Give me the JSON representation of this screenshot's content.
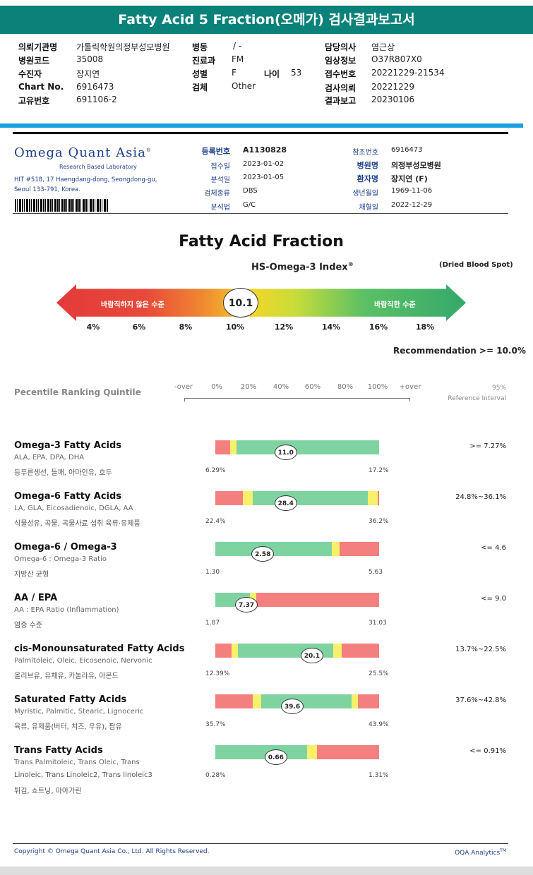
{
  "report_title": "Fatty Acid 5 Fraction(오메가) 검사결과보고서",
  "header": {
    "left": [
      {
        "label": "의뢰기관명",
        "value": "가톨릭학원의정부성모병원"
      },
      {
        "label": "병원코드",
        "value": "35008"
      },
      {
        "label": "수진자",
        "value": "장지연"
      },
      {
        "label": "Chart No.",
        "value": "6916473"
      },
      {
        "label": "고유번호",
        "value": "691106-2"
      }
    ],
    "middle": [
      {
        "label": "병동",
        "value": "/ -"
      },
      {
        "label": "진료과",
        "value": "FM"
      },
      {
        "label": "성별",
        "value": "F"
      },
      {
        "label": "검체",
        "value": "Other"
      }
    ],
    "age": {
      "label": "나이",
      "value": "53"
    },
    "right": [
      {
        "label": "담당의사",
        "value": "염근상"
      },
      {
        "label": "임상정보",
        "value": "O37R807X0"
      },
      {
        "label": "접수번호",
        "value": "20221229-21534"
      },
      {
        "label": "검사의뢰",
        "value": "20221229"
      },
      {
        "label": "결과보고",
        "value": "20230106"
      }
    ]
  },
  "lab": {
    "name_big": "Omega Quant Asia",
    "tm": "®",
    "tagline": "Research Based Laboratory",
    "address1": "HIT #518, 17 Haengdang-dong, Seongdong-gu,",
    "address2": "Seoul 133-791, Korea."
  },
  "specimen": {
    "col1": [
      {
        "label": "등록번호",
        "value": "A1130828",
        "bold": true
      },
      {
        "label": "접수일",
        "value": "2023-01-02"
      },
      {
        "label": "분석일",
        "value": "2023-01-05"
      },
      {
        "label": "검체종류",
        "value": "DBS"
      },
      {
        "label": "분석법",
        "value": "G/C"
      }
    ],
    "col2": [
      {
        "label": "참조번호",
        "value": "6916473"
      },
      {
        "label": "병원명",
        "value": "의정부성모병원",
        "bold": true
      },
      {
        "label": "환자명",
        "value": "장지연 (F)",
        "bold": true
      },
      {
        "label": "생년월일",
        "value": "1969-11-06"
      },
      {
        "label": "채혈일",
        "value": "2022-12-29"
      }
    ]
  },
  "main_title": "Fatty Acid Fraction",
  "hs_omega": {
    "title": "HS-Omega-3 Index",
    "title_sup": "®",
    "sample": "(Dried Blood Spot)",
    "left_label": "바람직하지 않은 수준",
    "right_label": "바람직한 수준",
    "value": "10.1",
    "ticks": [
      "4%",
      "6%",
      "8%",
      "10%",
      "12%",
      "14%",
      "16%",
      "18%"
    ],
    "recommendation": "Recommendation  >= 10.0%"
  },
  "percentile": {
    "title": "Pecentile Ranking Quintile",
    "labels": [
      "-over",
      "0%",
      "20%",
      "40%",
      "60%",
      "80%",
      "100%",
      "+over"
    ],
    "ref_title_1": "95%",
    "ref_title_2": "Reference Interval"
  },
  "rows": [
    {
      "title": "Omega-3 Fatty Acids",
      "sub": "ALA, EPA, DPA, DHA",
      "sub2": "등푸른생선, 들깨, 아마인유, 호두",
      "sub3": "",
      "min": "6.29%",
      "max": "17.2%",
      "value": "11.0",
      "value_pos": 0.43,
      "ref": ">= 7.27%",
      "segments": [
        {
          "from": 0,
          "to": 0.09,
          "c": "#f47f7f"
        },
        {
          "from": 0.09,
          "to": 0.13,
          "c": "#f6f06a"
        },
        {
          "from": 0.13,
          "to": 1,
          "c": "#7fd3a0"
        }
      ]
    },
    {
      "title": "Omega-6 Fatty Acids",
      "sub": "LA, GLA, Eicosadienoic, DGLA, AA",
      "sub2": "식물성유, 곡물, 곡물사료 섭취 육류·유제품",
      "sub3": "",
      "min": "22.4%",
      "max": "36.2%",
      "value": "28.4",
      "value_pos": 0.43,
      "ref": "24.8%~36.1%",
      "segments": [
        {
          "from": 0,
          "to": 0.17,
          "c": "#f47f7f"
        },
        {
          "from": 0.17,
          "to": 0.23,
          "c": "#f6f06a"
        },
        {
          "from": 0.23,
          "to": 0.93,
          "c": "#7fd3a0"
        },
        {
          "from": 0.93,
          "to": 0.99,
          "c": "#f6f06a"
        },
        {
          "from": 0.99,
          "to": 1,
          "c": "#f47f7f"
        }
      ]
    },
    {
      "title": "Omega-6 / Omega-3",
      "sub": "Omega-6 : Omega-3 Ratio",
      "sub2": "지방산 균형",
      "sub3": "",
      "min": "1.30",
      "max": "5.63",
      "value": "2.58",
      "value_pos": 0.29,
      "ref": "<= 4.6",
      "segments": [
        {
          "from": 0,
          "to": 0.71,
          "c": "#7fd3a0"
        },
        {
          "from": 0.71,
          "to": 0.76,
          "c": "#f6f06a"
        },
        {
          "from": 0.76,
          "to": 1,
          "c": "#f47f7f"
        }
      ]
    },
    {
      "title": "AA / EPA",
      "sub": "AA : EPA Ratio (Inflammation)",
      "sub2": "염증 수준",
      "sub3": "",
      "min": "1.87",
      "max": "31.03",
      "value": "7.37",
      "value_pos": 0.19,
      "ref": "<= 9.0",
      "segments": [
        {
          "from": 0,
          "to": 0.21,
          "c": "#7fd3a0"
        },
        {
          "from": 0.21,
          "to": 0.25,
          "c": "#f6f06a"
        },
        {
          "from": 0.25,
          "to": 1,
          "c": "#f47f7f"
        }
      ]
    },
    {
      "title": "cis-Monounsaturated Fatty Acids",
      "sub": "Palmitoleic, Oleic, Eicosenoic, Nervonic",
      "sub2": "올리브유, 유채유, 카놀라유, 아몬드",
      "sub3": "",
      "min": "12.39%",
      "max": "25.5%",
      "value": "20.1",
      "value_pos": 0.59,
      "ref": "13.7%~22.5%",
      "segments": [
        {
          "from": 0,
          "to": 0.1,
          "c": "#f47f7f"
        },
        {
          "from": 0.1,
          "to": 0.14,
          "c": "#f6f06a"
        },
        {
          "from": 0.14,
          "to": 0.72,
          "c": "#7fd3a0"
        },
        {
          "from": 0.72,
          "to": 0.77,
          "c": "#f6f06a"
        },
        {
          "from": 0.77,
          "to": 1,
          "c": "#f47f7f"
        }
      ]
    },
    {
      "title": "Saturated Fatty Acids",
      "sub": "Myristic, Palmitic, Stearic, Lignoceric",
      "sub2": "육류, 유제품(버터, 치즈, 우유), 팜유",
      "sub3": "",
      "min": "35.7%",
      "max": "43.9%",
      "value": "39.6",
      "value_pos": 0.47,
      "ref": "37.6%~42.8%",
      "segments": [
        {
          "from": 0,
          "to": 0.23,
          "c": "#f47f7f"
        },
        {
          "from": 0.23,
          "to": 0.28,
          "c": "#f6f06a"
        },
        {
          "from": 0.28,
          "to": 0.83,
          "c": "#7fd3a0"
        },
        {
          "from": 0.83,
          "to": 0.87,
          "c": "#f6f06a"
        },
        {
          "from": 0.87,
          "to": 1,
          "c": "#f47f7f"
        }
      ]
    },
    {
      "title": "Trans Fatty Acids",
      "sub": "Trans Palmitoleic, Trans Oleic, Trans",
      "sub2": "Linoleic, Trans Linoleic2, Trans linoleic3",
      "sub3": "튀김, 쇼트닝, 마아가린",
      "min": "0.28%",
      "max": "1.31%",
      "value": "0.66",
      "value_pos": 0.37,
      "ref": "<= 0.91%",
      "segments": [
        {
          "from": 0,
          "to": 0.56,
          "c": "#7fd3a0"
        },
        {
          "from": 0.56,
          "to": 0.62,
          "c": "#f6f06a"
        },
        {
          "from": 0.62,
          "to": 1,
          "c": "#f47f7f"
        }
      ]
    }
  ],
  "footer": {
    "copyright": "Copyright © Omega Quant Asia Co., Ltd.  All Rights Reserved.",
    "brand": "OQA Analytics",
    "brand_sup": "TM"
  }
}
